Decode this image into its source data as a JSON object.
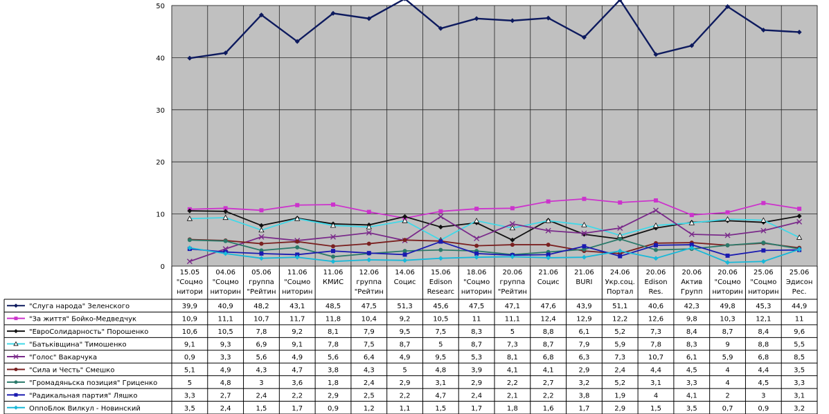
{
  "chart_data": {
    "type": "line",
    "title": "",
    "xlabel": "",
    "ylabel": "",
    "ylim": [
      0,
      50
    ],
    "yticks": [
      0,
      10,
      20,
      30,
      40,
      50
    ],
    "grid": true,
    "legend": "table-below",
    "categories": [
      [
        "15.05",
        "\"Соцмо",
        "нитори"
      ],
      [
        "04.06",
        "\"Соцмо",
        "ниторин"
      ],
      [
        "05.06",
        "группа",
        "\"Рейтин"
      ],
      [
        "11.06",
        "\"Соцмо",
        "ниторин"
      ],
      [
        "11.06",
        "КМИС",
        ""
      ],
      [
        "12.06",
        "группа",
        "\"Рейтин"
      ],
      [
        "14.06",
        "Социс",
        ""
      ],
      [
        "15.06",
        "Edison",
        "Researc"
      ],
      [
        "18.06",
        "\"Соцмо",
        "ниторин"
      ],
      [
        "20.06",
        "группа",
        "\"Рейтин"
      ],
      [
        "21.06",
        "Социс",
        ""
      ],
      [
        "21.06",
        "BURI",
        ""
      ],
      [
        "24.06",
        "Укр.соц.",
        "Портал"
      ],
      [
        "20.06",
        "Edison",
        "Res."
      ],
      [
        "20.06",
        "Актив",
        "Групп"
      ],
      [
        "20.06",
        "\"Соцмо",
        "ниторин"
      ],
      [
        "25.06",
        "\"Соцмо",
        "ниторин"
      ],
      [
        "25.06",
        "Эдисон",
        "Рес."
      ]
    ],
    "series": [
      {
        "name": "\"Слуга народа\" Зеленского",
        "color": "#0d1a5e",
        "marker": "diamond",
        "values": [
          39.9,
          40.9,
          48.2,
          43.1,
          48.5,
          47.5,
          51.3,
          45.6,
          47.5,
          47.1,
          47.6,
          43.9,
          51.1,
          40.6,
          42.3,
          49.8,
          45.3,
          44.9
        ],
        "labels": [
          "39,9",
          "40,9",
          "48,2",
          "43,1",
          "48,5",
          "47,5",
          "51,3",
          "45,6",
          "47,5",
          "47,1",
          "47,6",
          "43,9",
          "51,1",
          "40,6",
          "42,3",
          "49,8",
          "45,3",
          "44,9"
        ]
      },
      {
        "name": "\"За життя\" Бойко-Медведчук",
        "color": "#cc33cc",
        "marker": "square",
        "values": [
          10.9,
          11.1,
          10.7,
          11.7,
          11.8,
          10.4,
          9.2,
          10.5,
          11,
          11.1,
          12.4,
          12.9,
          12.2,
          12.6,
          9.8,
          10.3,
          12.1,
          11
        ],
        "labels": [
          "10,9",
          "11,1",
          "10,7",
          "11,7",
          "11,8",
          "10,4",
          "9,2",
          "10,5",
          "11",
          "11,1",
          "12,4",
          "12,9",
          "12,2",
          "12,6",
          "9,8",
          "10,3",
          "12,1",
          "11"
        ]
      },
      {
        "name": "\"ЕвроСолидарность\" Порошенко",
        "color": "#111111",
        "marker": "diamond",
        "values": [
          10.6,
          10.5,
          7.8,
          9.2,
          8.1,
          7.9,
          9.5,
          7.5,
          8.3,
          5,
          8.8,
          6.1,
          5.2,
          7.3,
          8.4,
          8.7,
          8.4,
          9.6
        ],
        "labels": [
          "10,6",
          "10,5",
          "7,8",
          "9,2",
          "8,1",
          "7,9",
          "9,5",
          "7,5",
          "8,3",
          "5",
          "8,8",
          "6,1",
          "5,2",
          "7,3",
          "8,4",
          "8,7",
          "8,4",
          "9,6"
        ]
      },
      {
        "name": "\"Батьківщина\" Тимошенко",
        "color": "#40d8e8",
        "marker": "triangle",
        "values": [
          9.1,
          9.3,
          6.9,
          9.1,
          7.8,
          7.5,
          8.7,
          5,
          8.7,
          7.3,
          8.7,
          7.9,
          5.9,
          7.8,
          8.3,
          9,
          8.8,
          5.5
        ],
        "labels": [
          "9,1",
          "9,3",
          "6,9",
          "9,1",
          "7,8",
          "7,5",
          "8,7",
          "5",
          "8,7",
          "7,3",
          "8,7",
          "7,9",
          "5,9",
          "7,8",
          "8,3",
          "9",
          "8,8",
          "5,5"
        ]
      },
      {
        "name": "\"Голос\" Вакарчука",
        "color": "#7a2a8a",
        "marker": "x",
        "values": [
          0.9,
          3.3,
          5.6,
          4.9,
          5.6,
          6.4,
          4.9,
          9.5,
          5.3,
          8.1,
          6.8,
          6.3,
          7.3,
          10.7,
          6.1,
          5.9,
          6.8,
          8.5
        ],
        "labels": [
          "0,9",
          "3,3",
          "5,6",
          "4,9",
          "5,6",
          "6,4",
          "4,9",
          "9,5",
          "5,3",
          "8,1",
          "6,8",
          "6,3",
          "7,3",
          "10,7",
          "6,1",
          "5,9",
          "6,8",
          "8,5"
        ]
      },
      {
        "name": "\"Сила и Честь\" Смешко",
        "color": "#7a2020",
        "marker": "circle",
        "values": [
          5.1,
          4.9,
          4.3,
          4.7,
          3.8,
          4.3,
          5,
          4.8,
          3.9,
          4.1,
          4.1,
          2.9,
          2.4,
          4.4,
          4.5,
          4,
          4.4,
          3.5
        ],
        "labels": [
          "5,1",
          "4,9",
          "4,3",
          "4,7",
          "3,8",
          "4,3",
          "5",
          "4,8",
          "3,9",
          "4,1",
          "4,1",
          "2,9",
          "2,4",
          "4,4",
          "4,5",
          "4",
          "4,4",
          "3,5"
        ]
      },
      {
        "name": "\"Громадяньска позиция\" Гриценко",
        "color": "#2a7a6a",
        "marker": "circle",
        "values": [
          5,
          4.8,
          3,
          3.6,
          1.8,
          2.4,
          2.9,
          3.1,
          2.9,
          2.2,
          2.7,
          3.2,
          5.2,
          3.1,
          3.3,
          4,
          4.5,
          3.3
        ],
        "labels": [
          "5",
          "4,8",
          "3",
          "3,6",
          "1,8",
          "2,4",
          "2,9",
          "3,1",
          "2,9",
          "2,2",
          "2,7",
          "3,2",
          "5,2",
          "3,1",
          "3,3",
          "4",
          "4,5",
          "3,3"
        ]
      },
      {
        "name": "\"Радикальная партия\" Ляшко",
        "color": "#1a1ab0",
        "marker": "square",
        "values": [
          3.3,
          2.7,
          2.4,
          2.2,
          2.9,
          2.5,
          2.2,
          4.7,
          2.4,
          2.1,
          2.2,
          3.8,
          1.9,
          4,
          4.1,
          2,
          3,
          3.1
        ],
        "labels": [
          "3,3",
          "2,7",
          "2,4",
          "2,2",
          "2,9",
          "2,5",
          "2,2",
          "4,7",
          "2,4",
          "2,1",
          "2,2",
          "3,8",
          "1,9",
          "4",
          "4,1",
          "2",
          "3",
          "3,1"
        ]
      },
      {
        "name": "ОппоБлок Вилкул - Новинский",
        "color": "#18b8d8",
        "marker": "diamond",
        "values": [
          3.5,
          2.4,
          1.5,
          1.7,
          0.9,
          1.2,
          1.1,
          1.5,
          1.7,
          1.8,
          1.6,
          1.7,
          2.9,
          1.5,
          3.5,
          0.7,
          0.9,
          3.2
        ],
        "labels": [
          "3,5",
          "2,4",
          "1,5",
          "1,7",
          "0,9",
          "1,2",
          "1,1",
          "1,5",
          "1,7",
          "1,8",
          "1,6",
          "1,7",
          "2,9",
          "1,5",
          "3,5",
          "0,7",
          "0,9",
          "3,2"
        ]
      }
    ]
  }
}
